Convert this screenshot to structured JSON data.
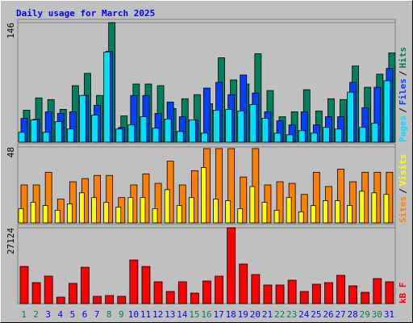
{
  "chart_data": [
    {
      "type": "bar",
      "title": "Daily usage for March 2025",
      "title_color": "#0000ff",
      "separator": "/",
      "ylim": [
        0,
        146
      ],
      "yticks": [
        146
      ],
      "series": [
        {
          "name": "Pages",
          "color": "#00e0ff",
          "values": [
            12,
            27,
            12,
            25,
            16,
            57,
            33,
            110,
            16,
            21,
            31,
            17,
            28,
            13,
            27,
            11,
            39,
            40,
            38,
            46,
            29,
            11,
            9,
            14,
            11,
            18,
            16,
            61,
            18,
            23,
            75
          ]
        },
        {
          "name": "Files",
          "color": "#0040ff",
          "values": [
            29,
            28,
            37,
            35,
            37,
            57,
            45,
            111,
            18,
            57,
            57,
            35,
            49,
            31,
            27,
            66,
            73,
            58,
            82,
            60,
            37,
            26,
            21,
            37,
            21,
            31,
            31,
            73,
            42,
            67,
            90
          ]
        },
        {
          "name": "Hits",
          "color": "#00805c",
          "values": [
            39,
            54,
            52,
            40,
            69,
            84,
            57,
            146,
            32,
            71,
            71,
            69,
            41,
            53,
            58,
            47,
            103,
            76,
            71,
            108,
            63,
            31,
            37,
            64,
            38,
            53,
            52,
            93,
            67,
            83,
            109
          ]
        }
      ]
    },
    {
      "type": "bar",
      "separator": "/",
      "ylim": [
        0,
        48
      ],
      "yticks": [
        48
      ],
      "series": [
        {
          "name": "Sites",
          "color": "#ff8000",
          "values": [
            24,
            24,
            32,
            15,
            26,
            28,
            30,
            30,
            16,
            24,
            31,
            25,
            39,
            24,
            33,
            47,
            47,
            47,
            29,
            47,
            24,
            26,
            25,
            18,
            32,
            23,
            34,
            26,
            32,
            32,
            32
          ]
        },
        {
          "name": "Visits",
          "color": "#ffff00",
          "values": [
            9,
            13,
            11,
            8,
            12,
            19,
            16,
            13,
            10,
            16,
            16,
            9,
            21,
            11,
            16,
            35,
            15,
            14,
            9,
            23,
            13,
            8,
            16,
            7,
            11,
            14,
            14,
            11,
            20,
            19,
            18
          ]
        }
      ]
    },
    {
      "type": "bar",
      "ylim": [
        0,
        27124
      ],
      "yticks": [
        27124
      ],
      "categories": [
        "1",
        "2",
        "3",
        "4",
        "5",
        "6",
        "7",
        "8",
        "9",
        "10",
        "11",
        "12",
        "13",
        "14",
        "15",
        "16",
        "17",
        "18",
        "19",
        "20",
        "21",
        "22",
        "23",
        "24",
        "25",
        "26",
        "27",
        "28",
        "29",
        "30",
        "31"
      ],
      "category_colors": [
        "#00805c",
        "#00805c",
        "#0000ff",
        "#0000ff",
        "#0000ff",
        "#0000ff",
        "#0000ff",
        "#00805c",
        "#00805c",
        "#0000ff",
        "#0000ff",
        "#0000ff",
        "#0000ff",
        "#0000ff",
        "#00805c",
        "#00805c",
        "#0000ff",
        "#0000ff",
        "#0000ff",
        "#0000ff",
        "#0000ff",
        "#00805c",
        "#00805c",
        "#0000ff",
        "#0000ff",
        "#0000ff",
        "#0000ff",
        "#0000ff",
        "#00805c",
        "#00805c",
        "#0000ff"
      ],
      "series": [
        {
          "name": "kB F",
          "color": "#ff0000",
          "values": [
            13272,
            7502,
            9811,
            2308,
            7214,
            12985,
            2597,
            2886,
            2597,
            15582,
            13272,
            7791,
            4328,
            7791,
            3751,
            8079,
            9811,
            27124,
            14140,
            10388,
            6637,
            6637,
            8368,
            4328,
            6925,
            7502,
            10099,
            6348,
            4040,
            8945,
            7791
          ]
        }
      ]
    }
  ]
}
